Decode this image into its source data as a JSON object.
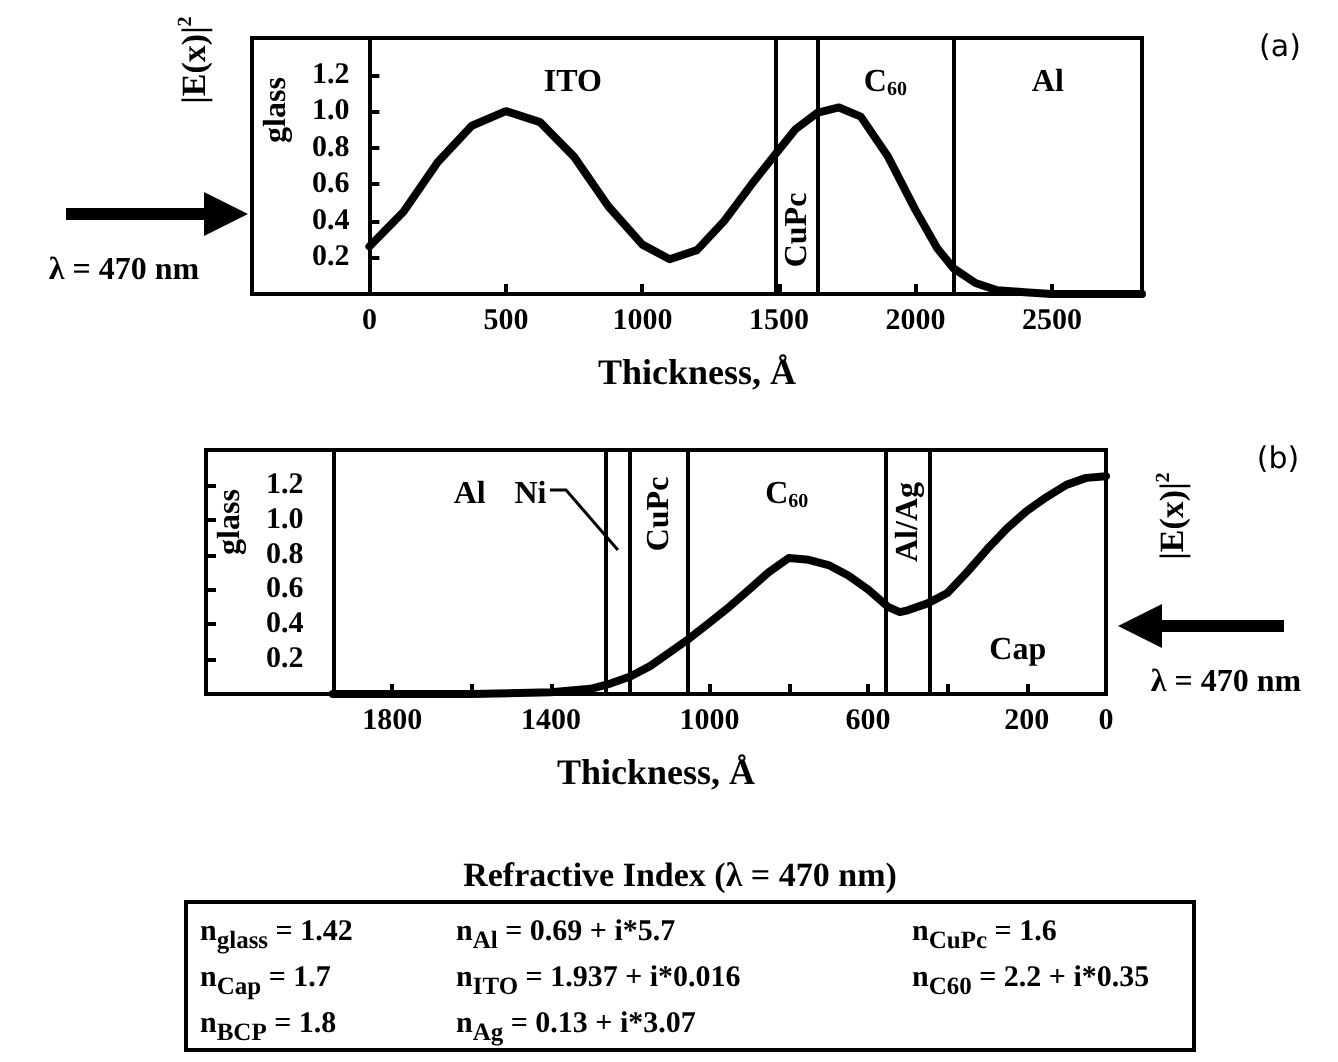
{
  "chart_data": [
    {
      "type": "line",
      "xlabel": "Thickness, Å",
      "ylabel": "|E(x)|$^{2}$",
      "color": "#000000",
      "x": [
        0,
        125,
        250,
        375,
        500,
        625,
        750,
        875,
        1000,
        1100,
        1200,
        1300,
        1400,
        1490,
        1560,
        1640,
        1720,
        1800,
        1900,
        2000,
        2080,
        2140,
        2220,
        2300,
        2400,
        2500,
        2830
      ],
      "values": [
        0.26,
        0.45,
        0.72,
        0.92,
        1.0,
        0.94,
        0.75,
        0.48,
        0.27,
        0.19,
        0.24,
        0.4,
        0.6,
        0.77,
        0.9,
        0.99,
        1.02,
        0.97,
        0.75,
        0.46,
        0.25,
        0.14,
        0.06,
        0.02,
        0.01,
        0,
        0
      ],
      "xlim": [
        -430,
        2830
      ],
      "ylim": [
        0,
        1.4
      ],
      "xticks": [
        0,
        500,
        1000,
        1500,
        2000,
        2500
      ],
      "yticks": [
        0.2,
        0.4,
        0.6,
        0.8,
        {
          "value": 1,
          "label": "1.0"
        },
        1.2
      ],
      "ref_lines": [
        {
          "axis": "x",
          "value": 1490
        },
        {
          "axis": "x",
          "value": 1640
        },
        {
          "axis": "x",
          "value": 2140
        }
      ],
      "annotations": [
        "λ = 470 nm",
        "(a)",
        "glass",
        "ITO",
        "CuPc",
        "C$_{60}$",
        "Al"
      ]
    },
    {
      "type": "line",
      "xlabel": "Thickness, Å",
      "ylabel": "|E(x)|$^{2}$",
      "color": "#000000",
      "x": [
        1950,
        1800,
        1600,
        1400,
        1350,
        1300,
        1250,
        1200,
        1150,
        1100,
        1050,
        1000,
        950,
        900,
        850,
        800,
        750,
        700,
        650,
        600,
        550,
        520,
        500,
        450,
        400,
        350,
        300,
        250,
        200,
        150,
        100,
        50,
        0
      ],
      "values": [
        0,
        0,
        0,
        0.01,
        0.02,
        0.03,
        0.06,
        0.1,
        0.16,
        0.24,
        0.32,
        0.41,
        0.5,
        0.6,
        0.7,
        0.78,
        0.77,
        0.74,
        0.68,
        0.6,
        0.5,
        0.47,
        0.48,
        0.52,
        0.58,
        0.7,
        0.83,
        0.95,
        1.05,
        1.13,
        1.2,
        1.24,
        1.25
      ],
      "xlim": [
        2270,
        0
      ],
      "ylim": [
        0,
        1.4
      ],
      "xticks": [
        1800,
        {
          "value": 1600,
          "label": null
        },
        1400,
        {
          "value": 1200,
          "label": null
        },
        1000,
        {
          "value": 800,
          "label": null
        },
        600,
        {
          "value": 400,
          "label": null
        },
        200,
        0
      ],
      "yticks": [
        0.2,
        0.4,
        0.6,
        0.8,
        {
          "value": 1,
          "label": "1.0"
        },
        1.2
      ],
      "ref_lines": [
        {
          "axis": "x",
          "value": 1950
        },
        {
          "axis": "x",
          "value": 1260
        },
        {
          "axis": "x",
          "value": 1200
        },
        {
          "axis": "x",
          "value": 1055
        },
        {
          "axis": "x",
          "value": 555
        },
        {
          "axis": "x",
          "value": 445
        }
      ],
      "annotations": [
        "λ = 470 nm",
        "(b)",
        "glass",
        "Al",
        "Ni",
        "CuPc",
        "C$_{60}$",
        "Al/Ag",
        "Cap"
      ]
    },
    {
      "type": "other",
      "title": "Refractive Index (λ = 470 nm)",
      "annotations": [
        "n$_{glass}$ = 1.42",
        "n$_{Al}$ = 0.69 + i*5.7",
        "n$_{CuPc}$ = 1.6",
        "n$_{Cap}$ = 1.7",
        "n$_{ITO}$ = 1.937 + i*0.016",
        "n$_{C60}$ = 2.2 + i*0.35",
        "n$_{BCP}$ = 1.8",
        "n$_{Ag}$ = 0.13 + i*3.07"
      ]
    }
  ]
}
